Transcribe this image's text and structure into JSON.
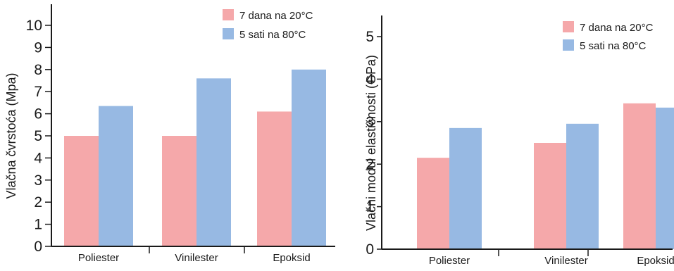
{
  "colors": {
    "series_a": "#f5a8aa",
    "series_b": "#97b9e3",
    "axis": "#1a1a1a"
  },
  "chart_data": [
    {
      "type": "bar",
      "categories": [
        "Poliester",
        "Vinilester",
        "Epoksid"
      ],
      "series": [
        {
          "name": "7 dana na 20°C",
          "values": [
            5.0,
            5.0,
            6.1
          ]
        },
        {
          "name": "5 sati na 80°C",
          "values": [
            6.35,
            7.6,
            8.0
          ]
        }
      ],
      "ylabel": "Vlačna čvrstoća (Mpa)",
      "xlabel": "",
      "ylim": [
        0,
        10
      ],
      "yticks": [
        0,
        1,
        2,
        3,
        4,
        5,
        6,
        7,
        8,
        9,
        10
      ],
      "grid": false,
      "legend": "top-right"
    },
    {
      "type": "bar",
      "categories": [
        "Poliester",
        "Vinilester",
        "Epoksid"
      ],
      "series": [
        {
          "name": "7 dana na 20°C",
          "values": [
            2.15,
            2.5,
            3.43
          ]
        },
        {
          "name": "5 sati na 80°C",
          "values": [
            2.85,
            2.95,
            3.33
          ]
        }
      ],
      "ylabel": "Vlačni modul elastičnosti (GPa)",
      "xlabel": "",
      "ylim": [
        0,
        5
      ],
      "yticks": [
        0,
        1,
        2,
        3,
        4,
        5
      ],
      "grid": false,
      "legend": "top-right"
    }
  ]
}
